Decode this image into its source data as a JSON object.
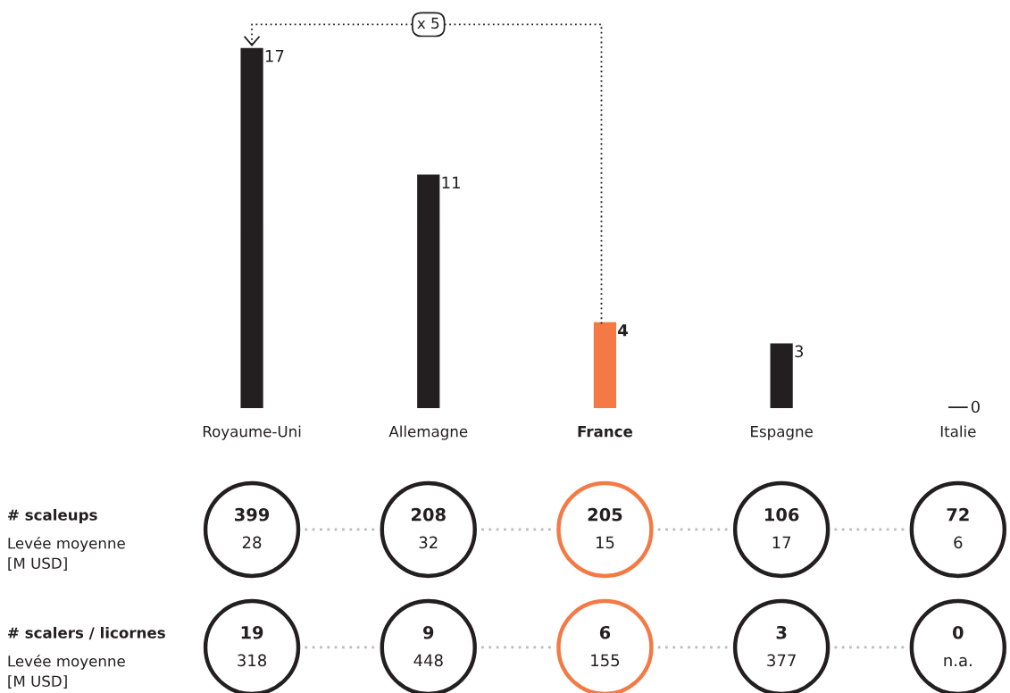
{
  "chart_data": [
    {
      "type": "bar",
      "categories": [
        "Royaume-Uni",
        "Allemagne",
        "France",
        "Espagne",
        "Italie"
      ],
      "values": [
        17,
        11,
        4,
        3,
        0
      ],
      "colors": [
        "#231f20",
        "#231f20",
        "#f47a45",
        "#231f20",
        "#231f20"
      ],
      "data_labels": true,
      "tick_labels": "x",
      "annotations": [
        "x 5"
      ]
    },
    {
      "type": "heatmap",
      "data_labels": true,
      "categories": [
        null,
        null,
        null,
        null,
        null
      ],
      "y_categories": [
        "# scaleups",
        "Levée moyenne\n[M USD]",
        "# scalers / licornes",
        "Levée moyenne\n[M USD]"
      ],
      "cells": [
        [
          399,
          208,
          205,
          106,
          72
        ],
        [
          28,
          32,
          15,
          17,
          6
        ],
        [
          19,
          9,
          6,
          3,
          0
        ],
        [
          318,
          448,
          155,
          377,
          null
        ]
      ],
      "annotations": [
        "n.a."
      ],
      "colors": [
        "#231f20",
        "#231f20",
        "#f47a45",
        "#231f20",
        "#231f20"
      ]
    }
  ]
}
